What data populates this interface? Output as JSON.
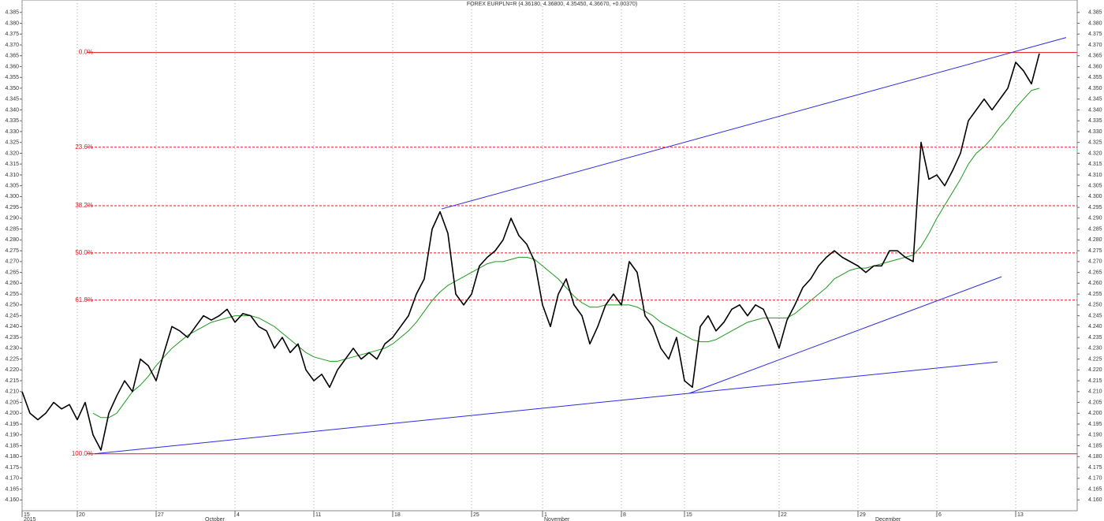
{
  "chart_data": {
    "type": "line",
    "title": "FOREX EURPLN=R (4.36180, 4.36800, 4.35450, 4.36670, +0.00370)",
    "xlim": [
      0,
      134
    ],
    "ylim": [
      4.155,
      4.39
    ],
    "grid": "x",
    "series": [
      {
        "color": "#000000",
        "values": [
          4.21,
          4.2,
          4.197,
          4.2,
          4.205,
          4.202,
          4.204,
          4.197,
          4.205,
          4.19,
          4.183,
          4.2,
          4.208,
          4.215,
          4.21,
          4.225,
          4.222,
          4.215,
          4.228,
          4.24,
          4.238,
          4.235,
          4.24,
          4.245,
          4.243,
          4.245,
          4.248,
          4.242,
          4.246,
          4.245,
          4.24,
          4.238,
          4.23,
          4.235,
          4.228,
          4.232,
          4.22,
          4.215,
          4.218,
          4.212,
          4.22,
          4.225,
          4.23,
          4.225,
          4.228,
          4.225,
          4.232,
          4.235,
          4.24,
          4.245,
          4.255,
          4.262,
          4.285,
          4.293,
          4.283,
          4.255,
          4.25,
          4.255,
          4.268,
          4.272,
          4.275,
          4.28,
          4.29,
          4.282,
          4.278,
          4.27,
          4.25,
          4.24,
          4.255,
          4.262,
          4.25,
          4.245,
          4.232,
          4.24,
          4.25,
          4.255,
          4.25,
          4.27,
          4.265,
          4.245,
          4.24,
          4.23,
          4.225,
          4.235,
          4.215,
          4.212,
          4.24,
          4.245,
          4.238,
          4.242,
          4.248,
          4.25,
          4.245,
          4.25,
          4.248,
          4.24,
          4.23,
          4.243,
          4.25,
          4.258,
          4.262,
          4.268,
          4.272,
          4.275,
          4.272,
          4.27,
          4.268,
          4.265,
          4.268,
          4.268,
          4.275,
          4.275,
          4.272,
          4.27,
          4.325,
          4.308,
          4.31,
          4.305,
          4.312,
          4.32,
          4.335,
          4.34,
          4.345,
          4.34,
          4.345,
          4.35,
          4.362,
          4.358,
          4.352,
          4.366
        ]
      },
      {
        "color": "#1e9a1e",
        "values": [
          null,
          null,
          null,
          null,
          null,
          null,
          null,
          null,
          null,
          4.2,
          4.198,
          4.198,
          4.2,
          4.205,
          4.21,
          4.213,
          4.217,
          4.222,
          4.226,
          4.23,
          4.233,
          4.236,
          4.238,
          4.24,
          4.242,
          4.243,
          4.244,
          4.245,
          4.245,
          4.245,
          4.244,
          4.242,
          4.24,
          4.237,
          4.234,
          4.231,
          4.228,
          4.226,
          4.225,
          4.224,
          4.224,
          4.225,
          4.226,
          4.227,
          4.228,
          4.229,
          4.23,
          4.232,
          4.235,
          4.238,
          4.242,
          4.247,
          4.252,
          4.256,
          4.259,
          4.261,
          4.263,
          4.265,
          4.267,
          4.269,
          4.27,
          4.27,
          4.271,
          4.272,
          4.272,
          4.271,
          4.268,
          4.265,
          4.262,
          4.258,
          4.254,
          4.251,
          4.249,
          4.249,
          4.25,
          4.25,
          4.25,
          4.25,
          4.249,
          4.247,
          4.245,
          4.242,
          4.24,
          4.238,
          4.236,
          4.234,
          4.233,
          4.233,
          4.234,
          4.236,
          4.238,
          4.24,
          4.242,
          4.243,
          4.244,
          4.244,
          4.244,
          4.244,
          4.246,
          4.249,
          4.252,
          4.255,
          4.258,
          4.262,
          4.264,
          4.266,
          4.267,
          4.267,
          4.268,
          4.269,
          4.27,
          4.271,
          4.272,
          4.273,
          4.277,
          4.283,
          4.29,
          4.296,
          4.302,
          4.308,
          4.315,
          4.32,
          4.323,
          4.327,
          4.332,
          4.336,
          4.341,
          4.345,
          4.349,
          4.35
        ]
      }
    ],
    "trendlines": [
      {
        "color": "#2a2ae6",
        "x": [
          9.2,
          84.6
        ],
        "y": [
          4.1813,
          4.2092
        ]
      },
      {
        "color": "#2a2ae6",
        "x": [
          53.2,
          132.4
        ],
        "y": [
          4.2943,
          4.3734
        ]
      },
      {
        "color": "#2a2ae6",
        "x": [
          84.6,
          123.7
        ],
        "y": [
          4.2092,
          4.2237
        ]
      },
      {
        "color": "#2a2ae6",
        "x": [
          84.6,
          124.2
        ],
        "y": [
          4.2092,
          4.263
        ]
      }
    ],
    "fib_color": "#e8141e",
    "fib_start": 8.2,
    "fib_levels": [
      {
        "value": 4.3665,
        "label": "0.0%",
        "dashed": false
      },
      {
        "value": 4.3228,
        "label": "23.6%",
        "dashed": true
      },
      {
        "value": 4.2958,
        "label": "38.2%",
        "dashed": true
      },
      {
        "value": 4.274,
        "label": "50.0%",
        "dashed": true
      },
      {
        "value": 4.2522,
        "label": "61.8%",
        "dashed": true
      },
      {
        "value": 4.1813,
        "label": "100.0%",
        "dashed": false
      }
    ],
    "xticks": [
      {
        "value": 0,
        "label": "15"
      },
      {
        "value": 7,
        "label": "20"
      },
      {
        "value": 17,
        "label": "27"
      },
      {
        "value": 27,
        "label": "4"
      },
      {
        "value": 37,
        "label": "11"
      },
      {
        "value": 47,
        "label": "18"
      },
      {
        "value": 57,
        "label": "25"
      },
      {
        "value": 66,
        "label": "1"
      },
      {
        "value": 76,
        "label": "8"
      },
      {
        "value": 84,
        "label": "15"
      },
      {
        "value": 96,
        "label": "22"
      },
      {
        "value": 106,
        "label": "29"
      },
      {
        "value": 116,
        "label": "6"
      },
      {
        "value": 126,
        "label": "13"
      }
    ],
    "month_labels": [
      {
        "value": 0,
        "label": "2015"
      },
      {
        "value": 23,
        "label": "October"
      },
      {
        "value": 66,
        "label": "November"
      },
      {
        "value": 108,
        "label": "December"
      }
    ],
    "yticks": [
      {
        "value": 4.16,
        "label": "4.160"
      },
      {
        "value": 4.165,
        "label": "4.165"
      },
      {
        "value": 4.17,
        "label": "4.170"
      },
      {
        "value": 4.175,
        "label": "4.175"
      },
      {
        "value": 4.18,
        "label": "4.180"
      },
      {
        "value": 4.185,
        "label": "4.185"
      },
      {
        "value": 4.19,
        "label": "4.190"
      },
      {
        "value": 4.195,
        "label": "4.195"
      },
      {
        "value": 4.2,
        "label": "4.200"
      },
      {
        "value": 4.205,
        "label": "4.205"
      },
      {
        "value": 4.21,
        "label": "4.210"
      },
      {
        "value": 4.215,
        "label": "4.215"
      },
      {
        "value": 4.22,
        "label": "4.220"
      },
      {
        "value": 4.225,
        "label": "4.225"
      },
      {
        "value": 4.23,
        "label": "4.230"
      },
      {
        "value": 4.235,
        "label": "4.235"
      },
      {
        "value": 4.24,
        "label": "4.240"
      },
      {
        "value": 4.245,
        "label": "4.245"
      },
      {
        "value": 4.25,
        "label": "4.250"
      },
      {
        "value": 4.255,
        "label": "4.255"
      },
      {
        "value": 4.26,
        "label": "4.260"
      },
      {
        "value": 4.265,
        "label": "4.265"
      },
      {
        "value": 4.27,
        "label": "4.270"
      },
      {
        "value": 4.275,
        "label": "4.275"
      },
      {
        "value": 4.28,
        "label": "4.280"
      },
      {
        "value": 4.285,
        "label": "4.285"
      },
      {
        "value": 4.29,
        "label": "4.290"
      },
      {
        "value": 4.295,
        "label": "4.295"
      },
      {
        "value": 4.3,
        "label": "4.300"
      },
      {
        "value": 4.305,
        "label": "4.305"
      },
      {
        "value": 4.31,
        "label": "4.310"
      },
      {
        "value": 4.315,
        "label": "4.315"
      },
      {
        "value": 4.32,
        "label": "4.320"
      },
      {
        "value": 4.325,
        "label": "4.325"
      },
      {
        "value": 4.33,
        "label": "4.330"
      },
      {
        "value": 4.335,
        "label": "4.335"
      },
      {
        "value": 4.34,
        "label": "4.340"
      },
      {
        "value": 4.345,
        "label": "4.345"
      },
      {
        "value": 4.35,
        "label": "4.350"
      },
      {
        "value": 4.355,
        "label": "4.355"
      },
      {
        "value": 4.36,
        "label": "4.360"
      },
      {
        "value": 4.365,
        "label": "4.365"
      },
      {
        "value": 4.37,
        "label": "4.370"
      },
      {
        "value": 4.375,
        "label": "4.375"
      },
      {
        "value": 4.38,
        "label": "4.380"
      },
      {
        "value": 4.385,
        "label": "4.385"
      }
    ]
  }
}
